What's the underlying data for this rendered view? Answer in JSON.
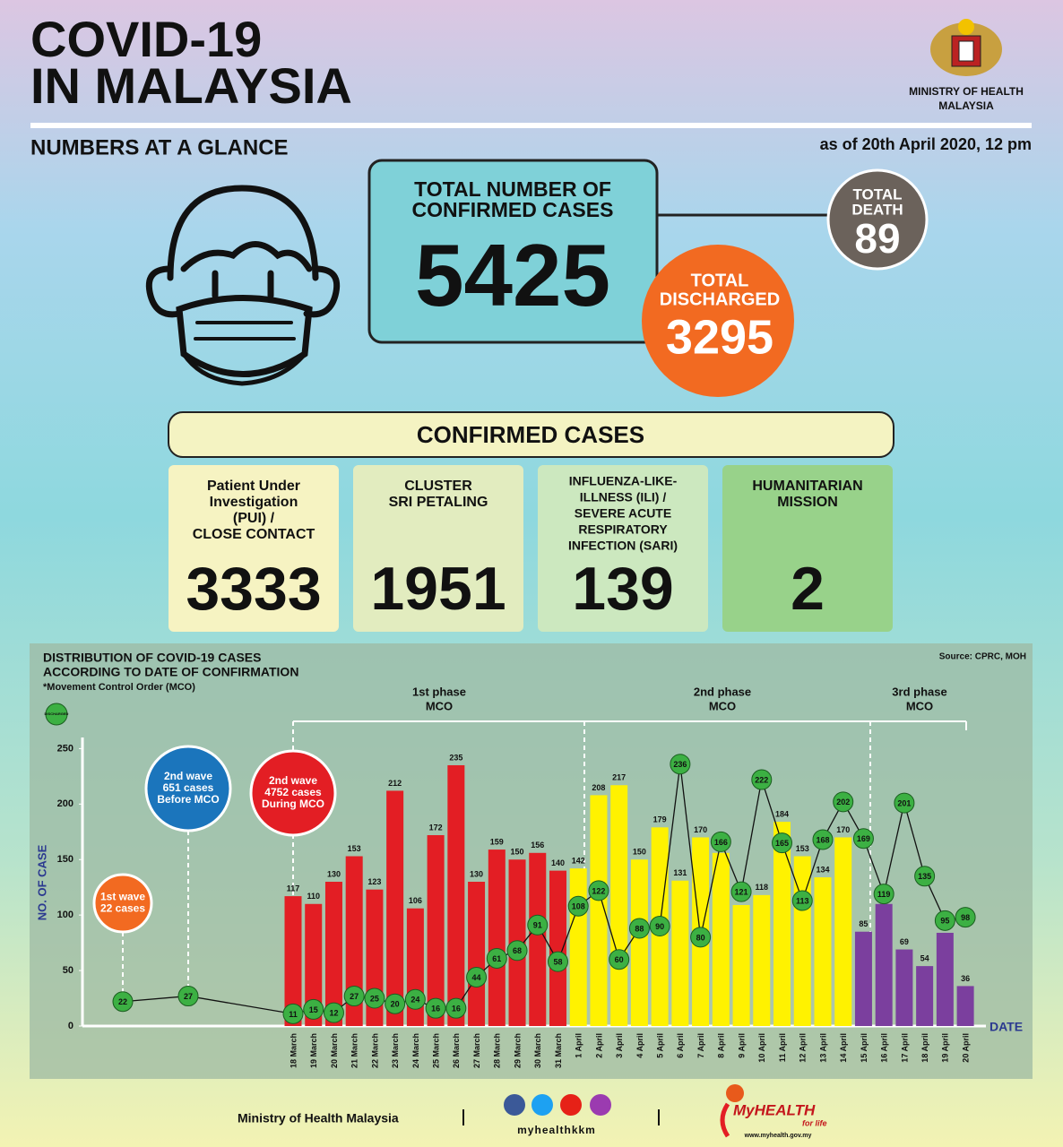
{
  "header": {
    "title": [
      "COVID-19",
      "IN MALAYSIA"
    ],
    "ministry": [
      "MINISTRY OF HEALTH",
      "MALAYSIA"
    ],
    "subtitle": "NUMBERS AT A GLANCE",
    "as_of": "as of 20th April 2020, 12 pm"
  },
  "totals": {
    "confirmed_label": [
      "TOTAL NUMBER OF",
      "CONFIRMED CASES"
    ],
    "confirmed": 5425,
    "death_label": [
      "TOTAL",
      "DEATH"
    ],
    "death": 89,
    "discharged_label": [
      "TOTAL",
      "DISCHARGED"
    ],
    "discharged": 3295
  },
  "confirmed_cases": {
    "title": "CONFIRMED CASES",
    "groups": [
      {
        "label": [
          "Patient Under",
          "Investigation",
          "(PUI) /",
          "CLOSE CONTACT"
        ],
        "value": 3333,
        "color": "#f6f3c2"
      },
      {
        "label": [
          "CLUSTER",
          "SRI PETALING"
        ],
        "value": 1951,
        "color": "#e2ecbf"
      },
      {
        "label": [
          "INFLUENZA-LIKE-",
          "ILLNESS (ILI) /",
          "SEVERE ACUTE",
          "RESPIRATORY",
          "INFECTION (SARI)"
        ],
        "value": 139,
        "color": "#cce8bf"
      },
      {
        "label": [
          "HUMANITARIAN",
          "MISSION"
        ],
        "value": 2,
        "color": "#98d28a"
      }
    ]
  },
  "chart_data": {
    "type": "bar",
    "title": [
      "DISTRIBUTION OF COVID-19 CASES",
      "ACCORDING TO DATE OF CONFIRMATION"
    ],
    "note": "*Movement Control Order (MCO)",
    "source": "Source: CPRC, MOH",
    "y_label": "NO. OF CASE",
    "x_label": "DATE",
    "categories": [
      null,
      null,
      "18 March",
      "19 March",
      "20 March",
      "21 March",
      "22 March",
      "23 March",
      "24 March",
      "25 March",
      "26 March",
      "27 March",
      "28 March",
      "29 March",
      "30 March",
      "31 March",
      "1 April",
      "2 April",
      "3 April",
      "4 April",
      "5 April",
      "6 April",
      "7 April",
      "8 April",
      "9 April",
      "10 April",
      "11 April",
      "12 April",
      "13 April",
      "14 April",
      "15 April",
      "16 April",
      "17 April",
      "18 April",
      "19 April",
      "20 April"
    ],
    "series": [
      {
        "type": "bar",
        "values": [
          null,
          null,
          117,
          110,
          130,
          153,
          123,
          212,
          106,
          172,
          235,
          130,
          159,
          150,
          156,
          140,
          142,
          208,
          217,
          150,
          179,
          131,
          170,
          156,
          109,
          118,
          184,
          153,
          134,
          170,
          85,
          110,
          69,
          54,
          84,
          36
        ],
        "colors": [
          null,
          null,
          "#e31e24",
          "#e31e24",
          "#e31e24",
          "#e31e24",
          "#e31e24",
          "#e31e24",
          "#e31e24",
          "#e31e24",
          "#e31e24",
          "#e31e24",
          "#e31e24",
          "#e31e24",
          "#e31e24",
          "#e31e24",
          "#fff200",
          "#fff200",
          "#fff200",
          "#fff200",
          "#fff200",
          "#fff200",
          "#fff200",
          "#fff200",
          "#fff200",
          "#fff200",
          "#fff200",
          "#fff200",
          "#fff200",
          "#fff200",
          "#7b3f9e",
          "#7b3f9e",
          "#7b3f9e",
          "#7b3f9e",
          "#7b3f9e",
          "#7b3f9e"
        ]
      },
      {
        "type": "line",
        "name": "DISCHARGED",
        "color": "#3cb043",
        "values": [
          22,
          27,
          11,
          15,
          12,
          27,
          25,
          20,
          24,
          16,
          16,
          44,
          61,
          68,
          91,
          58,
          108,
          122,
          60,
          88,
          90,
          236,
          80,
          166,
          121,
          222,
          165,
          113,
          168,
          202,
          169,
          119,
          201,
          135,
          95,
          98
        ]
      }
    ],
    "ylim": [
      0,
      260
    ],
    "yticks": [
      0,
      50,
      100,
      150,
      200,
      250
    ],
    "phases": [
      {
        "label": [
          "1st phase",
          "MCO"
        ]
      },
      {
        "label": [
          "2nd phase",
          "MCO"
        ]
      },
      {
        "label": [
          "3rd phase",
          "MCO"
        ]
      }
    ],
    "waves": [
      {
        "label": [
          "1st wave",
          "22 cases"
        ],
        "color": "#f26a21"
      },
      {
        "label": [
          "2nd wave",
          "651 cases",
          "Before MCO"
        ],
        "color": "#1b75bc"
      },
      {
        "label": [
          "2nd wave",
          "4752 cases",
          "During MCO"
        ],
        "color": "#e31e24"
      }
    ]
  },
  "footer": {
    "ministry": "Ministry of Health Malaysia",
    "handle": "myhealthkkm",
    "brand": "MyHEALTH",
    "tagline": "for life",
    "url": "www.myhealth.gov.my"
  }
}
